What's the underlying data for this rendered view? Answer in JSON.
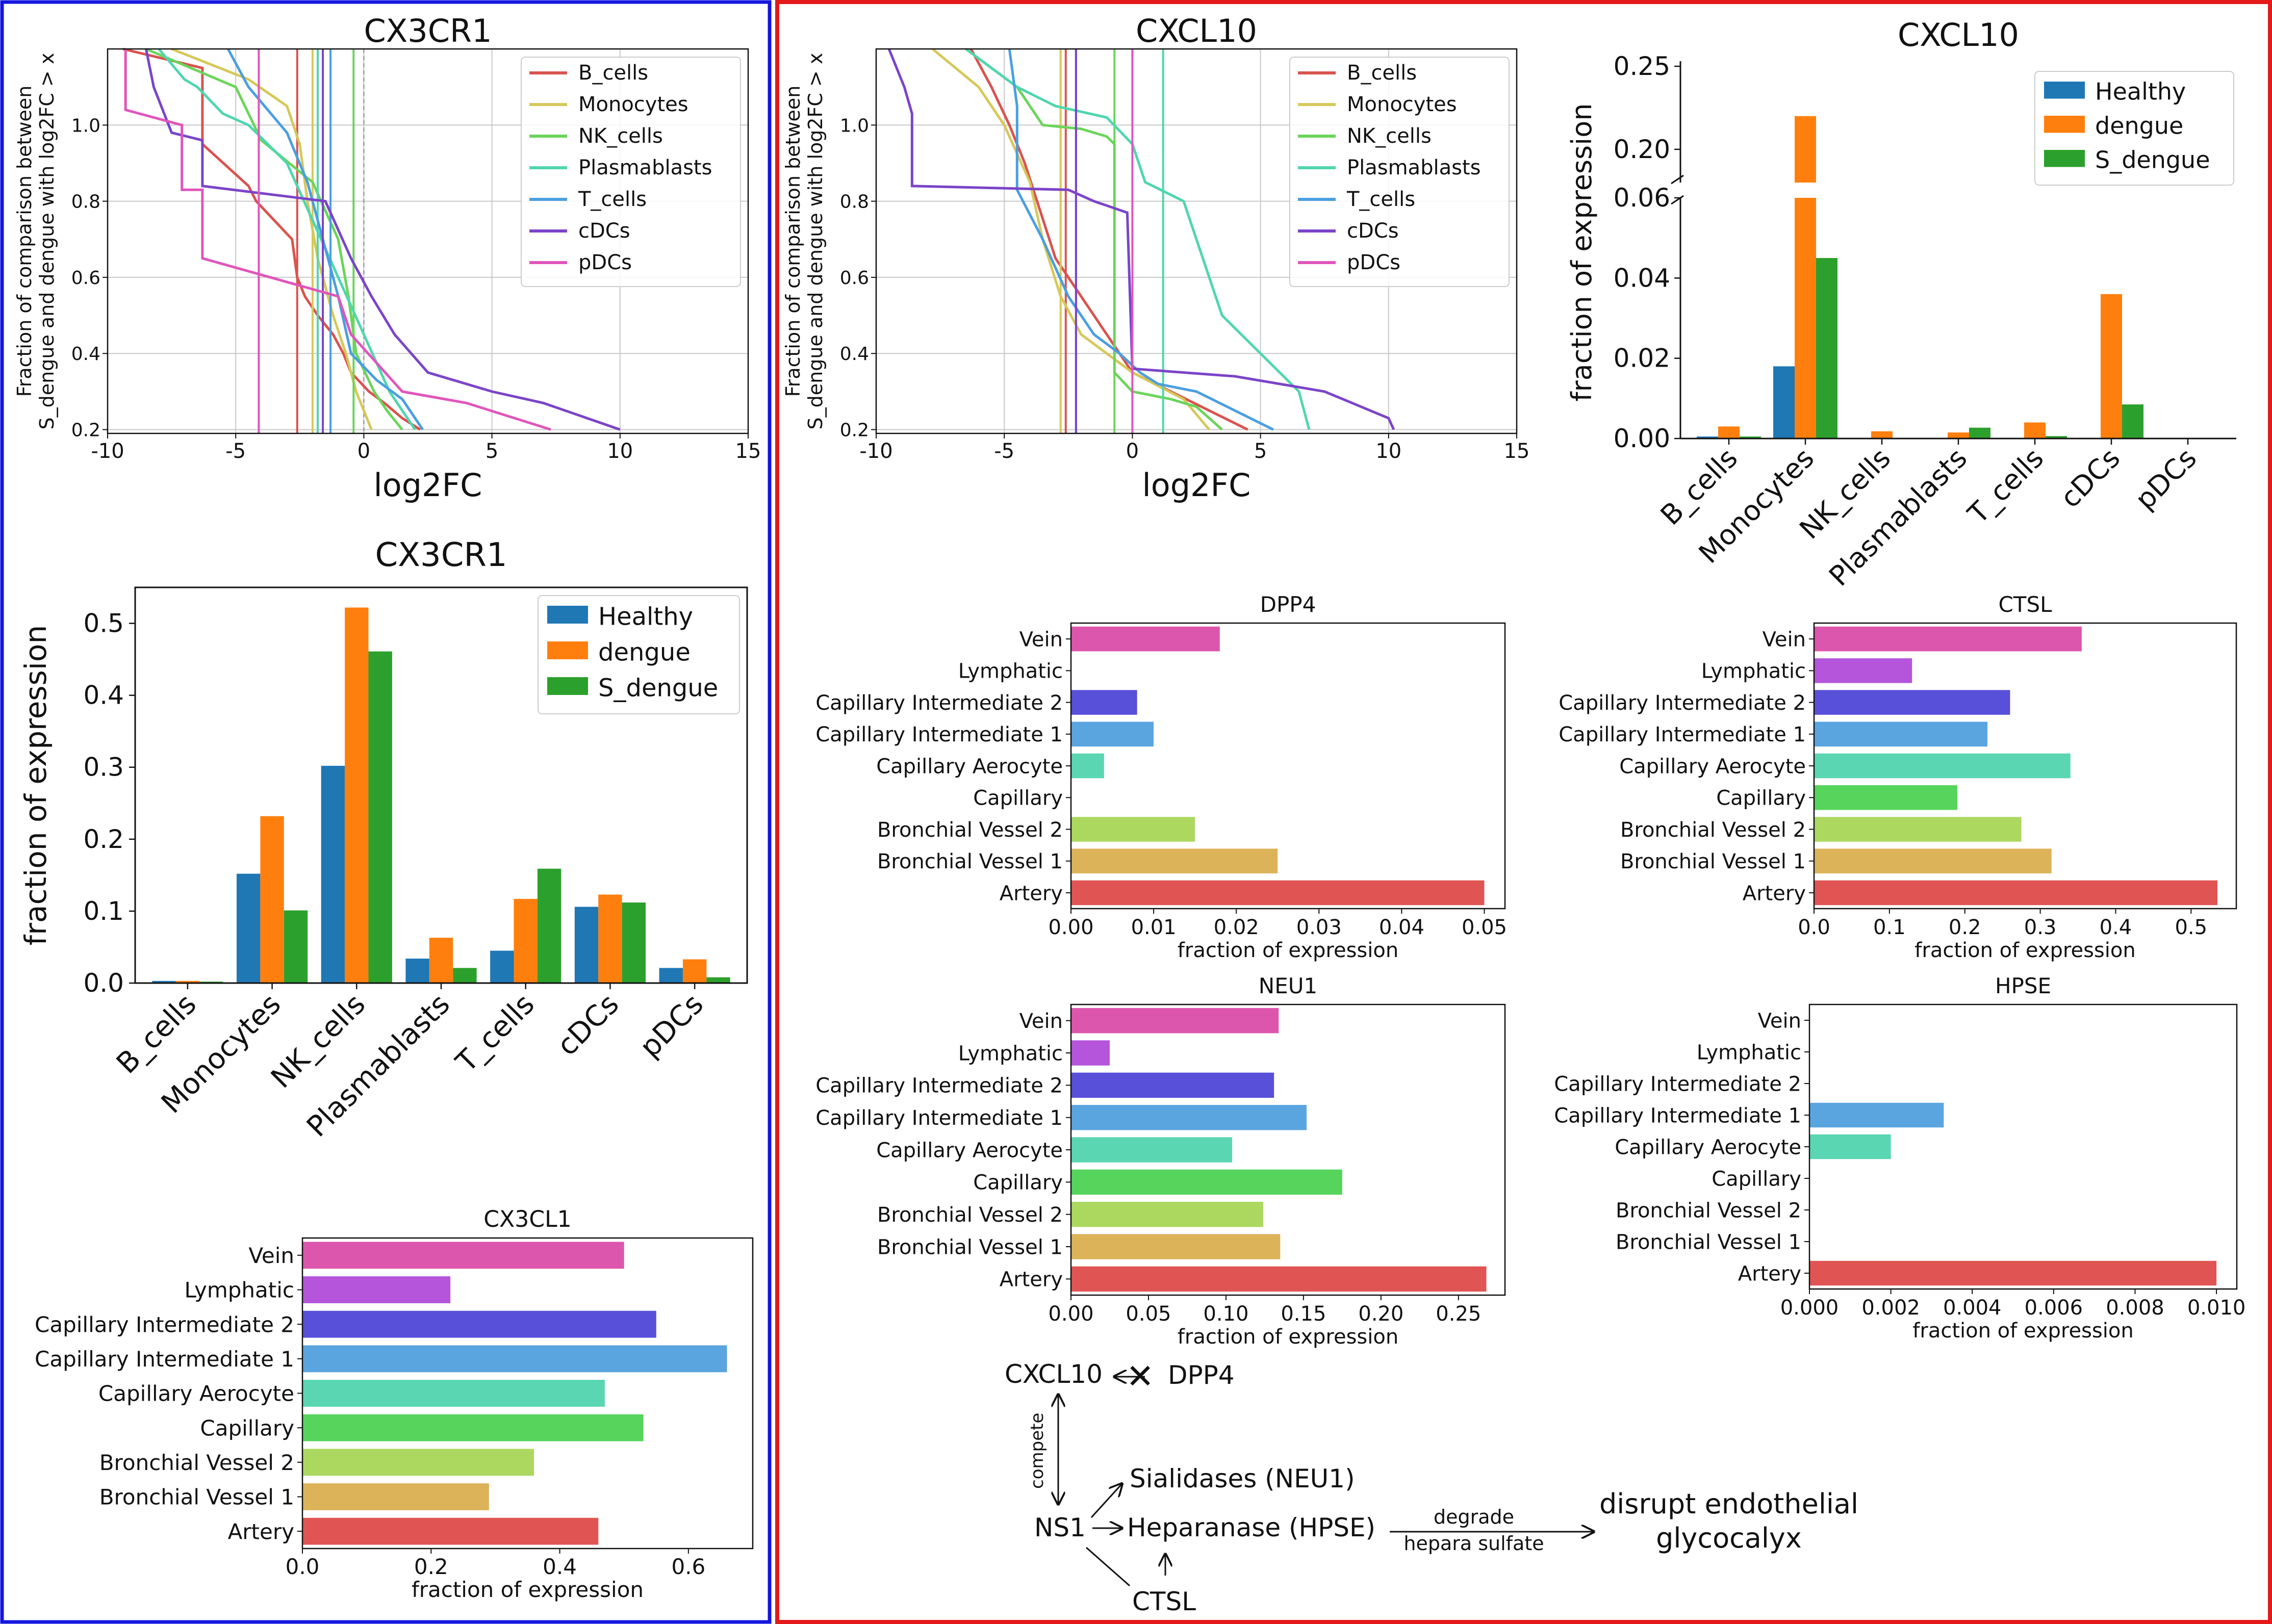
{
  "colors": {
    "blue_frame": "#1515e0",
    "red_frame": "#e41a1a",
    "Healthy": "#1f77b4",
    "dengue": "#ff7f0e",
    "S_dengue": "#2ca02c"
  },
  "cell_type_colors": {
    "B_cells": "#d9534f",
    "Monocytes": "#d6c85a",
    "NK_cells": "#6bd45a",
    "Plasmablasts": "#4fd6ae",
    "T_cells": "#4a9fe0",
    "cDCs": "#7b44c9",
    "pDCs": "#e055bb"
  },
  "tissue_colors": [
    "#e05553",
    "#ddb35a",
    "#acd860",
    "#56d45c",
    "#5ad6b2",
    "#5aa5e0",
    "#5850d9",
    "#b455dc",
    "#dc56ad"
  ],
  "chart_data": [
    {
      "id": "cx3cr1_cdf",
      "type": "line",
      "title": "CX3CR1",
      "xlabel": "log2FC",
      "ylabel": "Fraction of comparison between\nS_dengue and dengue with log2FC > x",
      "xlim": [
        -10,
        15
      ],
      "ylim": [
        0.19,
        1.2
      ],
      "xticks": [
        -10,
        -5,
        0,
        5,
        10,
        15
      ],
      "xtick_labels": [
        "-10",
        "-5",
        "0",
        "5",
        "10",
        "15"
      ],
      "yticks": [
        0.2,
        0.4,
        0.6,
        0.8,
        1.0
      ],
      "ytick_labels": [
        "0.2",
        "0.4",
        "0.6",
        "0.8",
        "1.0"
      ],
      "grid": true,
      "legend": "top-right",
      "series": [
        {
          "name": "B_cells",
          "vline": -2.6,
          "x": [
            -9.4,
            -6.3,
            -6.3,
            -4.5,
            -4.2,
            -2.8,
            -2.6,
            -2.3,
            -1.8,
            -1.2,
            -0.8,
            -0.5,
            0.2,
            0.8,
            1.5,
            2.2
          ],
          "y": [
            1.2,
            1.15,
            0.95,
            0.84,
            0.8,
            0.7,
            0.6,
            0.55,
            0.5,
            0.45,
            0.4,
            0.35,
            0.3,
            0.27,
            0.23,
            0.2
          ]
        },
        {
          "name": "Monocytes",
          "vline": -2.0,
          "x": [
            -7.5,
            -4.5,
            -3.0,
            -2.5,
            -2.2,
            -1.8,
            -1.2,
            -0.7,
            -0.3,
            0.0,
            0.3
          ],
          "y": [
            1.2,
            1.12,
            1.05,
            0.95,
            0.8,
            0.65,
            0.5,
            0.4,
            0.3,
            0.25,
            0.2
          ]
        },
        {
          "name": "NK_cells",
          "vline": -0.4,
          "x": [
            -8.5,
            -5.0,
            -4.0,
            -2.0,
            -1.0,
            -0.6,
            -0.3,
            0.4,
            0.9,
            1.5
          ],
          "y": [
            1.2,
            1.1,
            0.96,
            0.85,
            0.7,
            0.55,
            0.4,
            0.3,
            0.25,
            0.2
          ]
        },
        {
          "name": "Plasmablasts",
          "vline": -1.8,
          "x": [
            -8.0,
            -7.0,
            -6.5,
            -5.5,
            -4.5,
            -3.0,
            -2.0,
            -1.0,
            0.0,
            1.0,
            2.0
          ],
          "y": [
            1.2,
            1.12,
            1.1,
            1.03,
            1.0,
            0.9,
            0.75,
            0.6,
            0.45,
            0.3,
            0.2
          ]
        },
        {
          "name": "T_cells",
          "vline": -1.3,
          "x": [
            -5.3,
            -4.5,
            -3.0,
            -2.2,
            -1.6,
            -1.0,
            -0.5,
            0.5,
            1.5,
            2.3
          ],
          "y": [
            1.2,
            1.1,
            0.98,
            0.85,
            0.7,
            0.55,
            0.4,
            0.33,
            0.28,
            0.2
          ]
        },
        {
          "name": "cDCs",
          "vline": -1.6,
          "x": [
            -8.5,
            -8.2,
            -7.5,
            -6.3,
            -6.3,
            -1.5,
            -0.5,
            0.3,
            1.2,
            2.5,
            5.0,
            7.0,
            10.0
          ],
          "y": [
            1.2,
            1.1,
            0.98,
            0.96,
            0.84,
            0.8,
            0.65,
            0.55,
            0.45,
            0.35,
            0.3,
            0.27,
            0.2
          ]
        },
        {
          "name": "pDCs",
          "vline": -4.1,
          "x": [
            -9.3,
            -9.3,
            -7.1,
            -7.1,
            -6.3,
            -6.3,
            -1.0,
            -0.5,
            1.5,
            4.0,
            7.3
          ],
          "y": [
            1.2,
            1.04,
            1.0,
            0.83,
            0.83,
            0.65,
            0.55,
            0.45,
            0.3,
            0.27,
            0.2
          ]
        }
      ]
    },
    {
      "id": "cxcl10_cdf",
      "type": "line",
      "title": "CXCL10",
      "xlabel": "log2FC",
      "ylabel": "Fraction of comparison between\nS_dengue and dengue with log2FC > x",
      "xlim": [
        -10,
        15
      ],
      "ylim": [
        0.19,
        1.2
      ],
      "xticks": [
        -10,
        -5,
        0,
        5,
        10,
        15
      ],
      "xtick_labels": [
        "-10",
        "-5",
        "0",
        "5",
        "10",
        "15"
      ],
      "yticks": [
        0.2,
        0.4,
        0.6,
        0.8,
        1.0
      ],
      "ytick_labels": [
        "0.2",
        "0.4",
        "0.6",
        "0.8",
        "1.0"
      ],
      "grid": true,
      "legend": "top-right",
      "series": [
        {
          "name": "B_cells",
          "vline": -2.6,
          "x": [
            -6.3,
            -5.5,
            -4.8,
            -4.2,
            -3.0,
            -2.0,
            -1.0,
            0.0,
            1.5,
            3.0,
            4.5
          ],
          "y": [
            1.2,
            1.1,
            1.0,
            0.9,
            0.65,
            0.55,
            0.45,
            0.35,
            0.3,
            0.25,
            0.2
          ]
        },
        {
          "name": "Monocytes",
          "vline": -2.8,
          "x": [
            -7.8,
            -6.0,
            -5.0,
            -4.0,
            -3.5,
            -2.8,
            -2.0,
            -1.0,
            0.0,
            2.0,
            3.0
          ],
          "y": [
            1.2,
            1.1,
            1.0,
            0.85,
            0.7,
            0.55,
            0.45,
            0.4,
            0.35,
            0.28,
            0.2
          ]
        },
        {
          "name": "NK_cells",
          "vline": -0.7,
          "x": [
            -6.5,
            -4.5,
            -3.5,
            -2.0,
            -1.0,
            -0.7,
            -0.7,
            0.0,
            1.5,
            2.5,
            3.5
          ],
          "y": [
            1.2,
            1.1,
            1.0,
            0.99,
            0.97,
            0.95,
            0.35,
            0.3,
            0.28,
            0.26,
            0.2
          ]
        },
        {
          "name": "Plasmablasts",
          "vline": 1.2,
          "x": [
            -6.5,
            -4.5,
            -3.0,
            -1.0,
            0.0,
            0.5,
            2.0,
            2.5,
            3.0,
            3.5,
            5.0,
            6.5,
            6.9
          ],
          "y": [
            1.2,
            1.1,
            1.05,
            1.02,
            0.95,
            0.85,
            0.8,
            0.7,
            0.6,
            0.5,
            0.4,
            0.3,
            0.2
          ]
        },
        {
          "name": "T_cells",
          "vline": -2.2,
          "x": [
            -4.8,
            -4.5,
            -4.5,
            -3.5,
            -2.5,
            -1.5,
            -0.5,
            0.3,
            1.0,
            2.5,
            4.0,
            5.5
          ],
          "y": [
            1.2,
            1.05,
            0.83,
            0.7,
            0.55,
            0.45,
            0.4,
            0.35,
            0.32,
            0.3,
            0.25,
            0.2
          ]
        },
        {
          "name": "cDCs",
          "vline": -2.2,
          "x": [
            -9.5,
            -8.9,
            -8.6,
            -8.6,
            -2.5,
            -1.5,
            -0.2,
            0.0,
            4.0,
            7.5,
            10.0,
            10.2
          ],
          "y": [
            1.2,
            1.1,
            1.03,
            0.84,
            0.83,
            0.8,
            0.77,
            0.36,
            0.34,
            0.3,
            0.23,
            0.2
          ]
        },
        {
          "name": "pDCs",
          "vline": 0.0,
          "x": [],
          "y": []
        }
      ]
    },
    {
      "id": "cxcl10_bar",
      "type": "bar",
      "title": "CXCL10",
      "ylabel": "fraction of expression",
      "categories": [
        "B_cells",
        "Monocytes",
        "NK_cells",
        "Plasmablasts",
        "T_cells",
        "cDCs",
        "pDCs"
      ],
      "broken_axis": true,
      "ylim_lower": [
        0,
        0.06
      ],
      "ylim_upper": [
        0.18,
        0.25
      ],
      "yticks_lower": [
        0.0,
        0.02,
        0.04,
        0.06
      ],
      "ytick_labels_lower": [
        "0.00",
        "0.02",
        "0.04",
        "0.06"
      ],
      "yticks_upper": [
        0.2,
        0.25
      ],
      "ytick_labels_upper": [
        "0.20",
        "0.25"
      ],
      "legend": "top-right",
      "series": [
        {
          "name": "Healthy",
          "values": [
            0.0005,
            0.018,
            0.0,
            0.0,
            0.0,
            0.0,
            0.0
          ]
        },
        {
          "name": "dengue",
          "values": [
            0.003,
            0.22,
            0.0018,
            0.0015,
            0.004,
            0.036,
            0.0
          ]
        },
        {
          "name": "S_dengue",
          "values": [
            0.0005,
            0.045,
            0.0,
            0.0027,
            0.0006,
            0.0085,
            0.0
          ]
        }
      ]
    },
    {
      "id": "cx3cr1_bar",
      "type": "bar",
      "title": "CX3CR1",
      "ylabel": "fraction of expression",
      "categories": [
        "B_cells",
        "Monocytes",
        "NK_cells",
        "Plasmablasts",
        "T_cells",
        "cDCs",
        "pDCs"
      ],
      "ylim": [
        0,
        0.55
      ],
      "yticks": [
        0.0,
        0.1,
        0.2,
        0.3,
        0.4,
        0.5
      ],
      "ytick_labels": [
        "0.0",
        "0.1",
        "0.2",
        "0.3",
        "0.4",
        "0.5"
      ],
      "legend": "top-right",
      "series": [
        {
          "name": "Healthy",
          "values": [
            0.003,
            0.152,
            0.302,
            0.034,
            0.045,
            0.106,
            0.021
          ]
        },
        {
          "name": "dengue",
          "values": [
            0.003,
            0.232,
            0.522,
            0.063,
            0.117,
            0.123,
            0.033
          ]
        },
        {
          "name": "S_dengue",
          "values": [
            0.002,
            0.101,
            0.461,
            0.021,
            0.159,
            0.112,
            0.008
          ]
        }
      ]
    },
    {
      "id": "cx3cl1_barh",
      "type": "bar",
      "orientation": "horizontal",
      "title": "CX3CL1",
      "xlabel": "fraction of expression",
      "categories": [
        "Vein",
        "Lymphatic",
        "Capillary Intermediate 2",
        "Capillary Intermediate 1",
        "Capillary Aerocyte",
        "Capillary",
        "Bronchial Vessel 2",
        "Bronchial Vessel 1",
        "Artery"
      ],
      "values": [
        0.5,
        0.23,
        0.55,
        0.66,
        0.47,
        0.53,
        0.36,
        0.29,
        0.46
      ],
      "xlim": [
        0,
        0.7
      ],
      "xticks": [
        0.0,
        0.2,
        0.4,
        0.6
      ],
      "xtick_labels": [
        "0.0",
        "0.2",
        "0.4",
        "0.6"
      ]
    },
    {
      "id": "dpp4_barh",
      "type": "bar",
      "orientation": "horizontal",
      "title": "DPP4",
      "xlabel": "fraction of expression",
      "categories": [
        "Vein",
        "Lymphatic",
        "Capillary Intermediate 2",
        "Capillary Intermediate 1",
        "Capillary Aerocyte",
        "Capillary",
        "Bronchial Vessel 2",
        "Bronchial Vessel 1",
        "Artery"
      ],
      "values": [
        0.018,
        0.0,
        0.008,
        0.01,
        0.004,
        0.0,
        0.015,
        0.025,
        0.05
      ],
      "xlim": [
        0,
        0.0525
      ],
      "xticks": [
        0.0,
        0.01,
        0.02,
        0.03,
        0.04,
        0.05
      ],
      "xtick_labels": [
        "0.00",
        "0.01",
        "0.02",
        "0.03",
        "0.04",
        "0.05"
      ]
    },
    {
      "id": "ctsl_barh",
      "type": "bar",
      "orientation": "horizontal",
      "title": "CTSL",
      "xlabel": "fraction of expression",
      "categories": [
        "Vein",
        "Lymphatic",
        "Capillary Intermediate 2",
        "Capillary Intermediate 1",
        "Capillary Aerocyte",
        "Capillary",
        "Bronchial Vessel 2",
        "Bronchial Vessel 1",
        "Artery"
      ],
      "values": [
        0.355,
        0.13,
        0.26,
        0.23,
        0.34,
        0.19,
        0.275,
        0.315,
        0.535
      ],
      "xlim": [
        0,
        0.56
      ],
      "xticks": [
        0.0,
        0.1,
        0.2,
        0.3,
        0.4,
        0.5
      ],
      "xtick_labels": [
        "0.0",
        "0.1",
        "0.2",
        "0.3",
        "0.4",
        "0.5"
      ]
    },
    {
      "id": "neu1_barh",
      "type": "bar",
      "orientation": "horizontal",
      "title": "NEU1",
      "xlabel": "fraction of expression",
      "categories": [
        "Vein",
        "Lymphatic",
        "Capillary Intermediate 2",
        "Capillary Intermediate 1",
        "Capillary Aerocyte",
        "Capillary",
        "Bronchial Vessel 2",
        "Bronchial Vessel 1",
        "Artery"
      ],
      "values": [
        0.134,
        0.025,
        0.131,
        0.152,
        0.104,
        0.175,
        0.124,
        0.135,
        0.268
      ],
      "xlim": [
        0,
        0.28
      ],
      "xticks": [
        0.0,
        0.05,
        0.1,
        0.15,
        0.2,
        0.25
      ],
      "xtick_labels": [
        "0.00",
        "0.05",
        "0.10",
        "0.15",
        "0.20",
        "0.25"
      ]
    },
    {
      "id": "hpse_barh",
      "type": "bar",
      "orientation": "horizontal",
      "title": "HPSE",
      "xlabel": "fraction of expression",
      "categories": [
        "Vein",
        "Lymphatic",
        "Capillary Intermediate 2",
        "Capillary Intermediate 1",
        "Capillary Aerocyte",
        "Capillary",
        "Bronchial Vessel 2",
        "Bronchial Vessel 1",
        "Artery"
      ],
      "values": [
        0.0,
        0.0,
        0.0,
        0.0033,
        0.002,
        0.0,
        0.0,
        0.0,
        0.01
      ],
      "xlim": [
        0,
        0.0105
      ],
      "xticks": [
        0.0,
        0.002,
        0.004,
        0.006,
        0.008,
        0.01
      ],
      "xtick_labels": [
        "0.000",
        "0.002",
        "0.004",
        "0.006",
        "0.008",
        "0.010"
      ]
    }
  ],
  "diagram": {
    "cxcl10": "CXCL10",
    "dpp4": "DPP4",
    "cross": "✕",
    "compete": "compete",
    "ns1": "NS1",
    "sialidases": "Sialidases (NEU1)",
    "heparanase": "Heparanase (HPSE)",
    "ctsl": "CTSL",
    "degrade": "degrade",
    "hepara_sulfate": "hepara sulfate",
    "disrupt_line1": "disrupt endothelial",
    "disrupt_line2": "glycocalyx"
  }
}
